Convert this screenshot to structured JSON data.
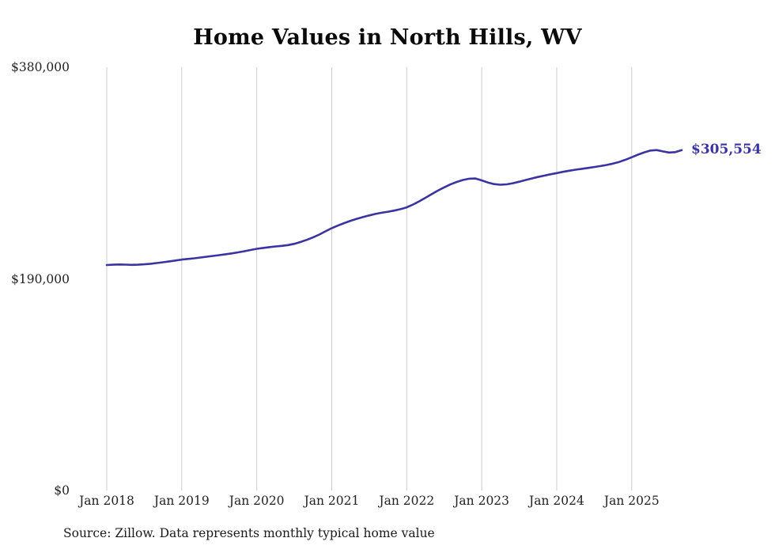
{
  "chart_data": {
    "type": "line",
    "title": "Home Values in North Hills, WV",
    "source": "Source: Zillow. Data represents monthly typical home value",
    "current_value_label": "$305,554",
    "current_value": 305554,
    "frequency": "monthly",
    "start_month": "Jan 2018",
    "end_month": "Sep 2025",
    "xlabel": "",
    "ylabel": "",
    "ylim": [
      0,
      380000
    ],
    "grid": "vertical-only",
    "legend": "none",
    "line_color": "#3a34a0",
    "grid_color": "#cccccc",
    "y_ticks": [
      {
        "value": 0,
        "label": "$0"
      },
      {
        "value": 190000,
        "label": "$190,000"
      },
      {
        "value": 380000,
        "label": "$380,000"
      }
    ],
    "x_ticks": [
      {
        "index": 0,
        "label": "Jan 2018"
      },
      {
        "index": 12,
        "label": "Jan 2019"
      },
      {
        "index": 24,
        "label": "Jan 2020"
      },
      {
        "index": 36,
        "label": "Jan 2021"
      },
      {
        "index": 48,
        "label": "Jan 2022"
      },
      {
        "index": 60,
        "label": "Jan 2023"
      },
      {
        "index": 72,
        "label": "Jan 2024"
      },
      {
        "index": 84,
        "label": "Jan 2025"
      }
    ],
    "values": [
      202400,
      202700,
      202900,
      202800,
      202600,
      202700,
      203100,
      203600,
      204200,
      204900,
      205700,
      206500,
      207300,
      207900,
      208500,
      209200,
      209900,
      210600,
      211300,
      212100,
      212900,
      213800,
      214800,
      215900,
      217000,
      217800,
      218500,
      219100,
      219600,
      220300,
      221500,
      223100,
      225000,
      227200,
      229800,
      232700,
      235500,
      237900,
      240100,
      242100,
      243900,
      245500,
      247000,
      248300,
      249400,
      250300,
      251300,
      252600,
      254200,
      256700,
      259600,
      262800,
      266100,
      269300,
      272200,
      274800,
      277000,
      278800,
      279900,
      280100,
      278400,
      276500,
      275100,
      274500,
      274900,
      275900,
      277200,
      278700,
      280100,
      281500,
      282700,
      283900,
      285000,
      286100,
      287100,
      288000,
      288800,
      289600,
      290400,
      291300,
      292300,
      293500,
      295000,
      297000,
      299200,
      301500,
      303600,
      305200,
      305600,
      304400,
      303400,
      303800,
      305554
    ]
  }
}
